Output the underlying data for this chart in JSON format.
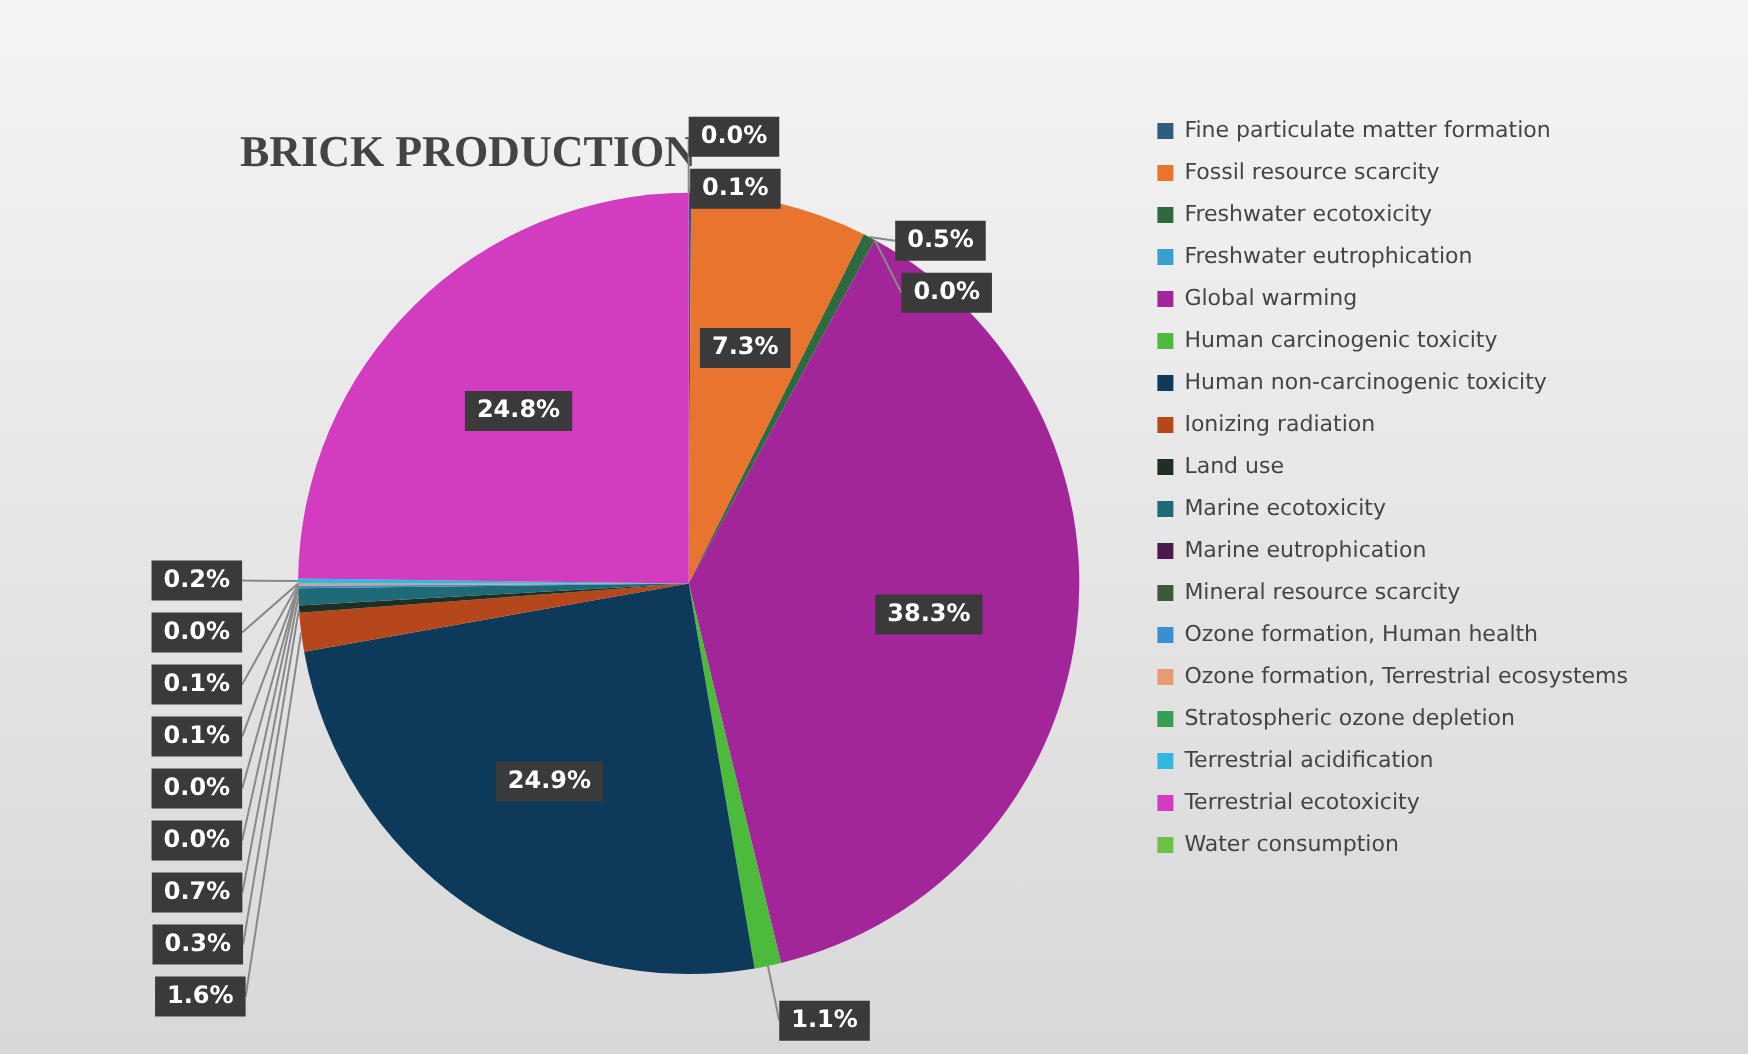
{
  "chart_data": {
    "type": "pie",
    "title": "BRICK PRODUCTION",
    "categories": [
      "Fine particulate matter formation",
      "Fossil resource scarcity",
      "Freshwater ecotoxicity",
      "Freshwater eutrophication",
      "Global warming",
      "Human carcinogenic toxicity",
      "Human non-carcinogenic toxicity",
      "Ionizing radiation",
      "Land use",
      "Marine ecotoxicity",
      "Marine eutrophication",
      "Mineral resource scarcity",
      "Ozone formation, Human health",
      "Ozone formation, Terrestrial ecosystems",
      "Stratospheric ozone depletion",
      "Terrestrial acidification",
      "Terrestrial ecotoxicity",
      "Water consumption"
    ],
    "values": [
      0.1,
      7.3,
      0.5,
      0.0,
      38.3,
      1.1,
      24.9,
      1.6,
      0.3,
      0.7,
      0.0,
      0.0,
      0.1,
      0.1,
      0.0,
      0.2,
      24.8,
      0.0
    ],
    "value_labels": [
      "0.1%",
      "7.3%",
      "0.5%",
      "0.0%",
      "38.3%",
      "1.1%",
      "24.9%",
      "1.6%",
      "0.3%",
      "0.7%",
      "0.0%",
      "0.0%",
      "0.1%",
      "0.1%",
      "0.0%",
      "0.2%",
      "24.8%",
      "0.0%"
    ],
    "colors": [
      "#2e5d7e",
      "#e8742e",
      "#2d6a3e",
      "#3aa0c8",
      "#a2269a",
      "#4cbb3c",
      "#0d3a5a",
      "#b5471a",
      "#1f2f24",
      "#1f6a78",
      "#4a1a4a",
      "#3a5a3a",
      "#3b8fd0",
      "#e89a70",
      "#36a050",
      "#30b8e0",
      "#d23cc0",
      "#6cc04a"
    ],
    "legend": "right"
  }
}
